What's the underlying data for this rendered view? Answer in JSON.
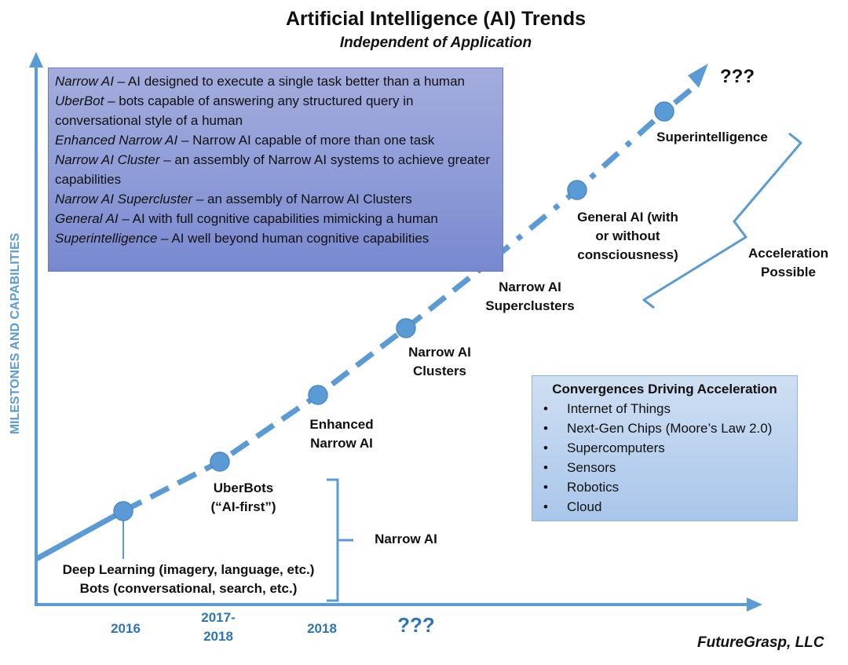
{
  "title": "Artificial Intelligence (AI) Trends",
  "subtitle": "Independent of Application",
  "y_axis_label": "MILESTONES AND CAPABILITIES",
  "definitions": [
    {
      "term": "Narrow AI",
      "text": " – AI designed to execute a single task better than a human"
    },
    {
      "term": "UberBot",
      "text": " – bots capable of answering any structured query in conversational style of a human"
    },
    {
      "term": "Enhanced Narrow AI",
      "text": " – Narrow AI capable of more than one task"
    },
    {
      "term": "Narrow AI Cluster",
      "text": " – an assembly of Narrow AI systems to achieve greater capabilities"
    },
    {
      "term": "Narrow AI Supercluster",
      "text": " – an assembly of Narrow AI Clusters"
    },
    {
      "term": "General AI",
      "text": " – AI with full cognitive capabilities mimicking a human"
    },
    {
      "term": "Superintelligence",
      "text": " – AI well beyond human cognitive capabilities"
    }
  ],
  "milestones": {
    "deep_learning": [
      "Deep Learning (imagery, language, etc.)",
      "Bots (conversational, search, etc.)"
    ],
    "uberbots": [
      "UberBots",
      "(“AI-first”)"
    ],
    "enhanced_narrow_ai": [
      "Enhanced",
      "Narrow AI"
    ],
    "narrow_ai_clusters": [
      "Narrow AI",
      "Clusters"
    ],
    "narrow_ai_superclusters": [
      "Narrow AI",
      "Superclusters"
    ],
    "general_ai": [
      "General AI (with",
      "or without",
      "consciousness)"
    ],
    "superintelligence": "Superintelligence"
  },
  "brackets": {
    "narrow_ai": "Narrow AI",
    "acceleration": [
      "Acceleration",
      "Possible"
    ]
  },
  "unknown_future": "???",
  "x_axis_years": [
    {
      "label_lines": [
        "2016"
      ]
    },
    {
      "label_lines": [
        "2017-",
        "2018"
      ]
    },
    {
      "label_lines": [
        "2018"
      ]
    },
    {
      "label_lines": [
        "???"
      ]
    }
  ],
  "convergences": {
    "title": "Convergences Driving Acceleration",
    "items": [
      "Internet of Things",
      "Next-Gen Chips (Moore’s Law 2.0)",
      "Supercomputers",
      "Sensors",
      "Robotics",
      "Cloud"
    ]
  },
  "credit": "FutureGrasp, LLC",
  "colors": {
    "accent": "#5b9bd5",
    "year_text": "#2e75b6",
    "definitions_box": "#8e9bd8",
    "convergence_box": "#b9d1ee"
  }
}
